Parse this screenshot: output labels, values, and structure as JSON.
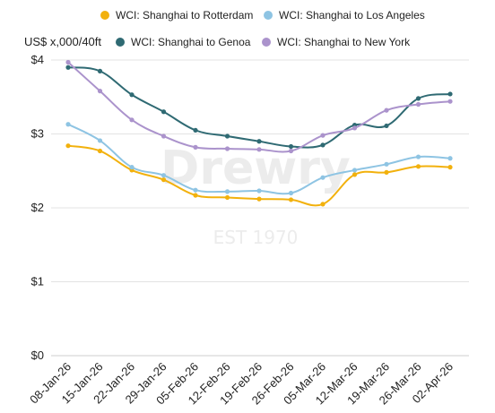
{
  "chart_data": {
    "type": "line",
    "ylabel": "US$ x,000/40ft",
    "ylim": [
      0,
      4
    ],
    "yticks": [
      0,
      1,
      2,
      3,
      4
    ],
    "ytick_labels": [
      "$0",
      "$1",
      "$2",
      "$3",
      "$4"
    ],
    "grid": true,
    "legend_position": "top",
    "watermark": {
      "brand": "Drewry",
      "est": "EST 1970"
    },
    "categories": [
      "08-Jan-26",
      "15-Jan-26",
      "22-Jan-26",
      "29-Jan-26",
      "05-Feb-26",
      "12-Feb-26",
      "19-Feb-26",
      "26-Feb-26",
      "05-Mar-26",
      "12-Mar-26",
      "19-Mar-26",
      "26-Mar-26",
      "02-Apr-26"
    ],
    "series": [
      {
        "name": "WCI: Shanghai to Rotterdam",
        "color": "#f2b10d",
        "values": [
          2.84,
          2.77,
          2.51,
          2.38,
          2.17,
          2.14,
          2.12,
          2.11,
          2.05,
          2.45,
          2.48,
          2.56,
          2.55
        ]
      },
      {
        "name": "WCI: Shanghai to Los Angeles",
        "color": "#8ec4e3",
        "values": [
          3.13,
          2.91,
          2.55,
          2.44,
          2.24,
          2.22,
          2.23,
          2.2,
          2.41,
          2.51,
          2.59,
          2.69,
          2.67
        ]
      },
      {
        "name": "WCI: Shanghai to Genoa",
        "color": "#2f6a73",
        "values": [
          3.9,
          3.85,
          3.53,
          3.3,
          3.05,
          2.97,
          2.9,
          2.83,
          2.85,
          3.12,
          3.11,
          3.48,
          3.54
        ]
      },
      {
        "name": "WCI: Shanghai to New York",
        "color": "#ab93cc",
        "values": [
          3.97,
          3.58,
          3.19,
          2.97,
          2.82,
          2.8,
          2.79,
          2.77,
          2.98,
          3.08,
          3.32,
          3.4,
          3.44
        ]
      }
    ]
  }
}
